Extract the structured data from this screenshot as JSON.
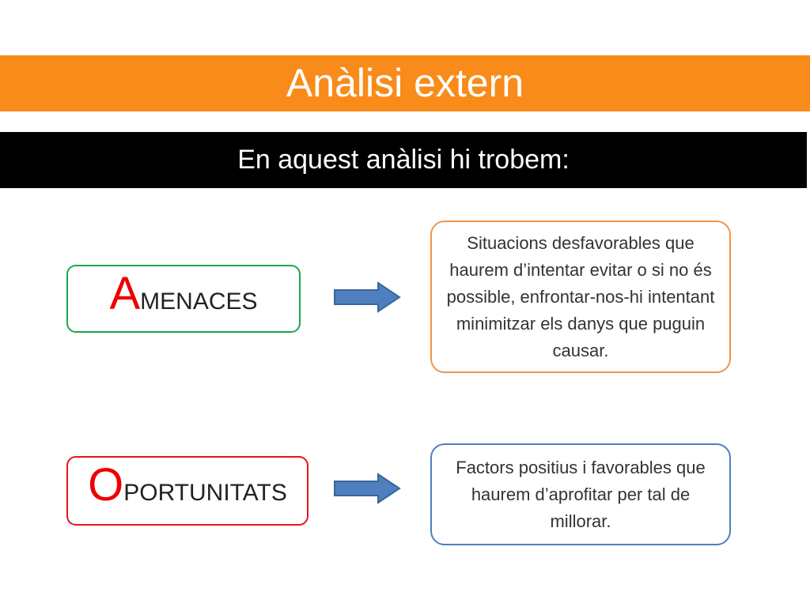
{
  "title": "Anàlisi extern",
  "subtitle": "En aquest anàlisi hi trobem:",
  "items": [
    {
      "initial": "A",
      "rest": "MENACES",
      "description": "Situacions desfavorables que haurem d’intentar evitar o si no és possible, enfrontar-nos-hi intentant minimitzar els danys que puguin causar.",
      "term_border": "#1aa84a",
      "desc_border": "#f0954a"
    },
    {
      "initial": "O",
      "rest": "PORTUNITATS",
      "description": "Factors positius i favorables que haurem d’aprofitar per tal de millorar.",
      "term_border": "#e8141c",
      "desc_border": "#4f7fbf"
    }
  ],
  "colors": {
    "header": "#f98b1a",
    "subheader": "#000000",
    "arrow": "#4f7fbf"
  }
}
